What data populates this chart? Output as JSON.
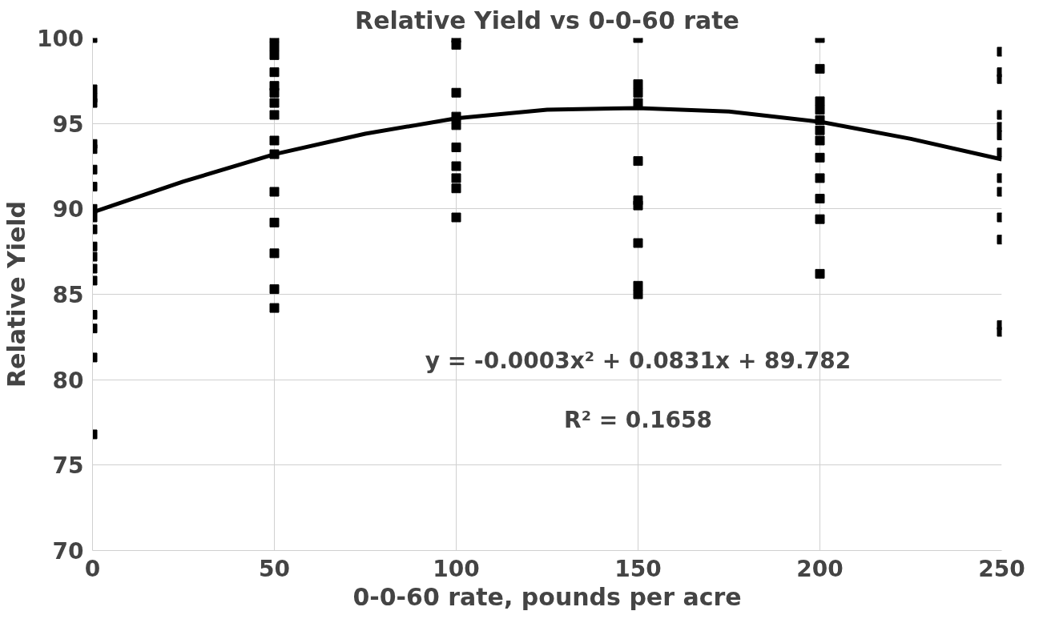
{
  "chart_data": {
    "type": "scatter",
    "title": "Relative Yield vs 0-0-60 rate",
    "xlabel": "0-0-60 rate, pounds per acre",
    "ylabel": "Relative Yield",
    "xlim": [
      0,
      250
    ],
    "ylim": [
      70,
      100
    ],
    "xticks": [
      0,
      50,
      100,
      150,
      200,
      250
    ],
    "yticks": [
      70,
      75,
      80,
      85,
      90,
      95,
      100
    ],
    "grid": true,
    "series": [
      {
        "marker": "square",
        "color": "#000000",
        "x": [
          0,
          0,
          0,
          0,
          0,
          0,
          0,
          0,
          0,
          0,
          0,
          0,
          0,
          0,
          0,
          0,
          0,
          0,
          0,
          50,
          50,
          50,
          50,
          50,
          50,
          50,
          50,
          50,
          50,
          50,
          50,
          50,
          50,
          50,
          100,
          100,
          100,
          100,
          100,
          100,
          100,
          100,
          100,
          100,
          150,
          150,
          150,
          150,
          150,
          150,
          150,
          150,
          150,
          150,
          200,
          200,
          200,
          200,
          200,
          200,
          200,
          200,
          200,
          200,
          200,
          200,
          250,
          250,
          250,
          250,
          250,
          250,
          250,
          250,
          250,
          250,
          250,
          250,
          250
        ],
        "values": [
          100,
          97,
          96.5,
          96.2,
          93.8,
          93.5,
          92.3,
          91.3,
          90,
          89.5,
          88.8,
          87.8,
          87.2,
          86.5,
          85.8,
          83.8,
          83,
          81.3,
          76.8,
          100,
          99.5,
          99,
          98,
          97.2,
          96.8,
          96.2,
          95.5,
          94,
          93.2,
          91,
          89.2,
          87.4,
          85.3,
          84.2,
          100,
          99.6,
          96.8,
          95.4,
          94.9,
          93.6,
          92.5,
          91.8,
          91.2,
          89.5,
          100,
          97.3,
          96.8,
          96.2,
          92.8,
          90.5,
          90.2,
          88,
          85.5,
          85,
          100,
          98.2,
          96.3,
          95.8,
          95.2,
          94.6,
          94,
          93,
          91.8,
          90.6,
          89.4,
          86.2,
          99.2,
          98,
          97.6,
          95.5,
          94.8,
          94.3,
          93.3,
          91.8,
          91,
          89.5,
          88.2,
          83.2,
          82.8
        ]
      },
      {
        "type": "line",
        "color": "#000000",
        "x": [
          0,
          25,
          50,
          75,
          100,
          125,
          150,
          175,
          200,
          225,
          250
        ],
        "values": [
          89.8,
          91.6,
          93.2,
          94.4,
          95.3,
          95.8,
          95.9,
          95.7,
          95.1,
          94.1,
          92.9
        ]
      }
    ],
    "annotations": [
      "y = -0.0003x² + 0.0831x + 89.782",
      "R² = 0.1658"
    ]
  }
}
